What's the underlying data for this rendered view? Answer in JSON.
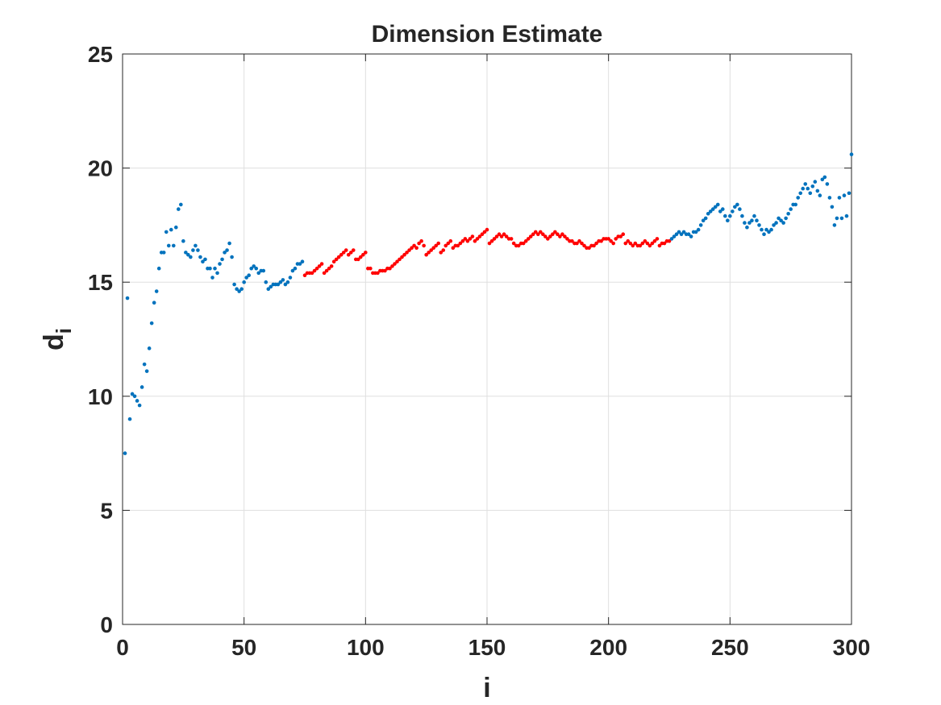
{
  "chart_data": {
    "type": "scatter",
    "title": "Dimension Estimate",
    "xlabel": "i",
    "ylabel": "d",
    "ylabel_subscript": "i",
    "xlim": [
      0,
      300
    ],
    "ylim": [
      0,
      25
    ],
    "xticks": [
      0,
      50,
      100,
      150,
      200,
      250,
      300
    ],
    "yticks": [
      0,
      5,
      10,
      15,
      20,
      25
    ],
    "grid": true,
    "series": [
      {
        "color": "#0072bd",
        "x": [
          1,
          2,
          3,
          4,
          5,
          6,
          7,
          8,
          9,
          10,
          11,
          12,
          13,
          14,
          15,
          16,
          17,
          18,
          19,
          20,
          21,
          22,
          23,
          24,
          25,
          26,
          27,
          28,
          29,
          30,
          31,
          32,
          33,
          34,
          35,
          36,
          37,
          38,
          39,
          40,
          41,
          42,
          43,
          44,
          45,
          46,
          47,
          48,
          49,
          50,
          51,
          52,
          53,
          54,
          55,
          56,
          57,
          58,
          59,
          60,
          61,
          62,
          63,
          64,
          65,
          66,
          67,
          68,
          69,
          70,
          71,
          72,
          73,
          74
        ],
        "values": [
          7.5,
          14.3,
          9.0,
          10.1,
          10.0,
          9.8,
          9.6,
          10.4,
          11.4,
          11.1,
          12.1,
          13.2,
          14.1,
          14.6,
          15.6,
          16.3,
          16.3,
          17.2,
          16.6,
          17.3,
          16.6,
          17.4,
          18.2,
          18.4,
          16.8,
          16.3,
          16.2,
          16.1,
          16.4,
          16.6,
          16.4,
          16.1,
          15.9,
          16.0,
          15.6,
          15.6,
          15.2,
          15.6,
          15.4,
          15.8,
          16.0,
          16.3,
          16.4,
          16.7,
          16.1,
          14.9,
          14.7,
          14.6,
          14.7,
          15.0,
          15.2,
          15.3,
          15.6,
          15.7,
          15.6,
          15.4,
          15.5,
          15.5,
          15.0,
          14.7,
          14.8,
          14.9,
          14.9,
          14.9,
          15.0,
          15.1,
          14.9,
          15.0,
          15.2,
          15.5,
          15.6,
          15.8,
          15.8,
          15.9
        ]
      },
      {
        "color": "#ff0000",
        "x": [
          75,
          76,
          77,
          78,
          79,
          80,
          81,
          82,
          83,
          84,
          85,
          86,
          87,
          88,
          89,
          90,
          91,
          92,
          93,
          94,
          95,
          96,
          97,
          98,
          99,
          100,
          101,
          102,
          103,
          104,
          105,
          106,
          107,
          108,
          109,
          110,
          111,
          112,
          113,
          114,
          115,
          116,
          117,
          118,
          119,
          120,
          121,
          122,
          123,
          124,
          125,
          126,
          127,
          128,
          129,
          130,
          131,
          132,
          133,
          134,
          135,
          136,
          137,
          138,
          139,
          140,
          141,
          142,
          143,
          144,
          145,
          146,
          147,
          148,
          149,
          150,
          151,
          152,
          153,
          154,
          155,
          156,
          157,
          158,
          159,
          160,
          161,
          162,
          163,
          164,
          165,
          166,
          167,
          168,
          169,
          170,
          171,
          172,
          173,
          174,
          175,
          176,
          177,
          178,
          179,
          180,
          181,
          182,
          183,
          184,
          185,
          186,
          187,
          188,
          189,
          190,
          191,
          192,
          193,
          194,
          195,
          196,
          197,
          198,
          199,
          200,
          201,
          202,
          203,
          204,
          205,
          206,
          207,
          208,
          209,
          210,
          211,
          212,
          213,
          214,
          215,
          216,
          217,
          218,
          219,
          220,
          221,
          222,
          223,
          224,
          225
        ],
        "values": [
          15.3,
          15.4,
          15.4,
          15.4,
          15.5,
          15.6,
          15.7,
          15.8,
          15.4,
          15.5,
          15.6,
          15.7,
          15.9,
          16.0,
          16.1,
          16.2,
          16.3,
          16.4,
          16.2,
          16.3,
          16.4,
          16.0,
          16.0,
          16.1,
          16.2,
          16.3,
          15.6,
          15.6,
          15.4,
          15.4,
          15.4,
          15.5,
          15.5,
          15.5,
          15.6,
          15.6,
          15.7,
          15.8,
          15.9,
          16.0,
          16.1,
          16.2,
          16.3,
          16.4,
          16.5,
          16.6,
          16.5,
          16.7,
          16.8,
          16.6,
          16.2,
          16.3,
          16.4,
          16.5,
          16.6,
          16.7,
          16.3,
          16.4,
          16.6,
          16.7,
          16.8,
          16.5,
          16.6,
          16.6,
          16.7,
          16.8,
          16.9,
          16.8,
          16.9,
          17.0,
          16.8,
          16.9,
          17.0,
          17.1,
          17.2,
          17.3,
          16.7,
          16.8,
          16.9,
          17.0,
          17.1,
          17.0,
          17.1,
          17.0,
          16.9,
          16.9,
          16.7,
          16.6,
          16.6,
          16.7,
          16.7,
          16.8,
          16.9,
          17.0,
          17.1,
          17.2,
          17.1,
          17.2,
          17.1,
          17.0,
          16.9,
          17.0,
          17.1,
          17.2,
          17.1,
          17.0,
          17.1,
          17.0,
          16.9,
          16.8,
          16.8,
          16.7,
          16.7,
          16.8,
          16.7,
          16.6,
          16.5,
          16.5,
          16.6,
          16.6,
          16.7,
          16.8,
          16.8,
          16.9,
          16.9,
          16.9,
          16.8,
          16.7,
          16.9,
          17.0,
          17.0,
          17.1,
          16.7,
          16.8,
          16.7,
          16.6,
          16.7,
          16.6,
          16.6,
          16.7,
          16.8,
          16.7,
          16.6,
          16.7,
          16.8,
          16.9,
          16.6,
          16.7,
          16.7,
          16.8,
          16.8
        ]
      },
      {
        "color": "#0072bd",
        "x": [
          226,
          227,
          228,
          229,
          230,
          231,
          232,
          233,
          234,
          235,
          236,
          237,
          238,
          239,
          240,
          241,
          242,
          243,
          244,
          245,
          246,
          247,
          248,
          249,
          250,
          251,
          252,
          253,
          254,
          255,
          256,
          257,
          258,
          259,
          260,
          261,
          262,
          263,
          264,
          265,
          266,
          267,
          268,
          269,
          270,
          271,
          272,
          273,
          274,
          275,
          276,
          277,
          278,
          279,
          280,
          281,
          282,
          283,
          284,
          285,
          286,
          287,
          288,
          289,
          290,
          291,
          292,
          293,
          294,
          295,
          296,
          297,
          298,
          299,
          300
        ],
        "values": [
          16.9,
          17.0,
          17.1,
          17.2,
          17.1,
          17.2,
          17.1,
          17.1,
          17.0,
          17.2,
          17.2,
          17.3,
          17.5,
          17.7,
          17.8,
          18.0,
          18.1,
          18.2,
          18.3,
          18.4,
          18.1,
          18.2,
          17.9,
          17.7,
          17.9,
          18.1,
          18.3,
          18.4,
          18.2,
          17.9,
          17.6,
          17.4,
          17.6,
          17.7,
          17.9,
          17.7,
          17.5,
          17.3,
          17.1,
          17.3,
          17.2,
          17.3,
          17.5,
          17.6,
          17.8,
          17.7,
          17.6,
          17.8,
          18.0,
          18.2,
          18.4,
          18.4,
          18.7,
          18.9,
          19.1,
          19.3,
          19.1,
          18.9,
          19.2,
          19.4,
          19.0,
          18.8,
          19.5,
          19.6,
          19.3,
          18.7,
          18.3,
          17.5,
          17.8,
          18.7,
          17.8,
          18.8,
          17.9,
          18.9,
          20.6
        ]
      }
    ]
  }
}
